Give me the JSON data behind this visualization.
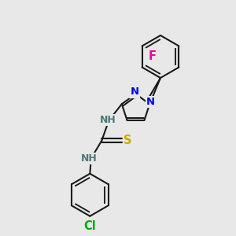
{
  "bg_color": "#e8e8e8",
  "bond_color": "#1a1a1a",
  "bond_width": 1.5,
  "atom_colors": {
    "N": "#0000ee",
    "S": "#ccaa00",
    "Cl": "#00aa00",
    "F": "#ee00aa",
    "H": "#4a7a7a",
    "C": "#1a1a1a"
  },
  "font_size": 9.5,
  "figsize": [
    3.0,
    3.0
  ],
  "dpi": 100
}
